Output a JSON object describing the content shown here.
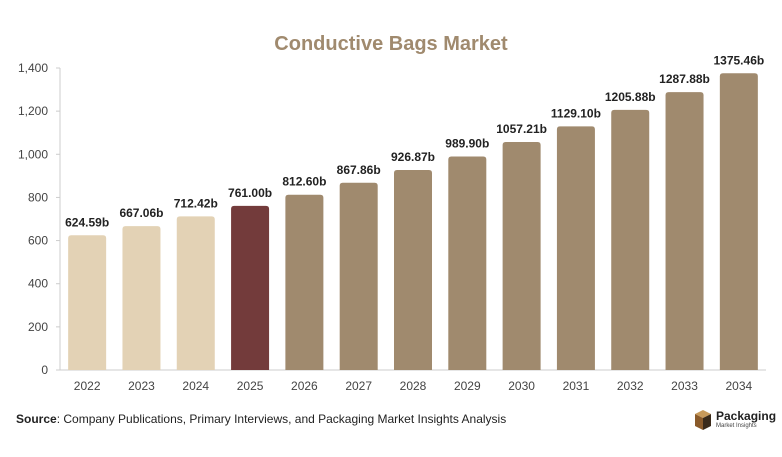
{
  "chart_data": {
    "type": "bar",
    "title": "Conductive Bags Market",
    "categories": [
      "2022",
      "2023",
      "2024",
      "2025",
      "2026",
      "2027",
      "2028",
      "2029",
      "2030",
      "2031",
      "2032",
      "2033",
      "2034"
    ],
    "values": [
      624.59,
      667.06,
      712.42,
      761.0,
      812.6,
      867.86,
      926.87,
      989.9,
      1057.21,
      1129.1,
      1205.88,
      1287.88,
      1375.46
    ],
    "data_labels": [
      "624.59b",
      "667.06b",
      "712.42b",
      "761.00b",
      "812.60b",
      "867.86b",
      "926.87b",
      "989.90b",
      "1057.21b",
      "1129.10b",
      "1205.88b",
      "1287.88b",
      "1375.46b"
    ],
    "bar_colors": [
      "#e3d2b5",
      "#e3d2b5",
      "#e3d2b5",
      "#733b3b",
      "#a08a6e",
      "#a08a6e",
      "#a08a6e",
      "#a08a6e",
      "#a08a6e",
      "#a08a6e",
      "#a08a6e",
      "#a08a6e",
      "#a08a6e"
    ],
    "ylim": [
      0,
      1400
    ],
    "yticks": [
      0,
      200,
      400,
      600,
      800,
      1000,
      1200,
      1400
    ],
    "ytick_labels": [
      "0",
      "200",
      "400",
      "600",
      "800",
      "1,000",
      "1,200",
      "1,400"
    ],
    "xlabel": "",
    "ylabel": "",
    "grid": false,
    "legend": "none"
  },
  "source": {
    "label": "Source",
    "text": ": Company Publications, Primary Interviews, and Packaging Market Insights Analysis"
  },
  "logo": {
    "name": "Packaging",
    "subtitle": "Market Insights"
  },
  "colors": {
    "title": "#a08a6e",
    "axis": "#cccccc"
  }
}
